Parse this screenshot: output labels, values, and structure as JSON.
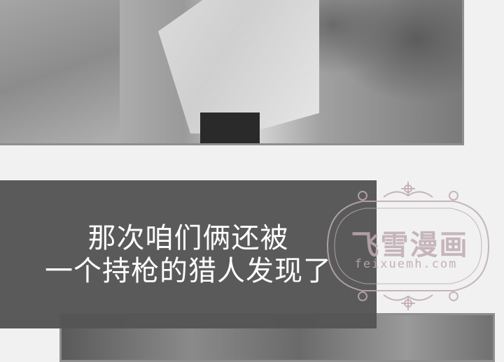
{
  "caption": {
    "line1": "那次咱们俩还被",
    "line2": "一个持枪的猎人发现了"
  },
  "watermark": {
    "title": "飞雪漫画",
    "url": "feixuemh.com",
    "color": "#bfaab0"
  }
}
